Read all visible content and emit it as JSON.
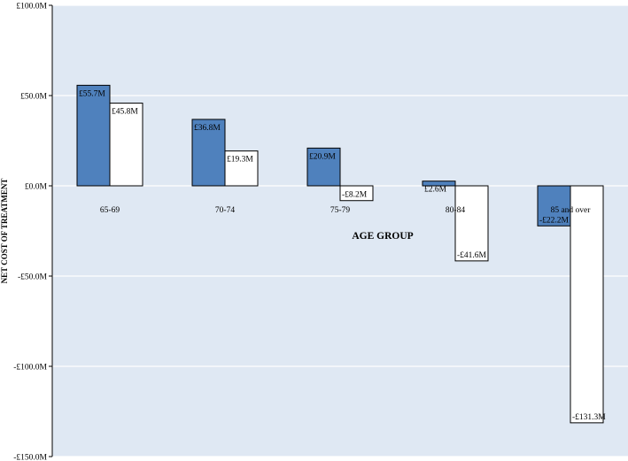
{
  "chart_data": {
    "type": "bar",
    "title": "",
    "xlabel": "AGE GROUP",
    "ylabel": "NET COST OF TREATMENT",
    "categories": [
      "65-69",
      "70-74",
      "75-79",
      "80-84",
      "85 and over"
    ],
    "series": [
      {
        "values": [
          55.7,
          36.8,
          20.9,
          2.6,
          -22.2
        ],
        "labels": [
          "£55.7M",
          "£36.8M",
          "£20.9M",
          "£2.6M",
          "-£22.2M"
        ]
      },
      {
        "values": [
          45.8,
          19.3,
          -8.2,
          -41.6,
          -131.3
        ],
        "labels": [
          "£45.8M",
          "£19.3M",
          "-£8.2M",
          "-£41.6M",
          "-£131.3M"
        ]
      }
    ],
    "ylim": [
      -150,
      100
    ],
    "yticks": [
      100,
      50,
      0,
      -50,
      -100,
      -150
    ],
    "ytick_labels": [
      "£100.0M",
      "£50.0M",
      "£0.0M",
      "-£50.0M",
      "-£100.0M",
      "-£150.0M"
    ],
    "grid": true,
    "legend": "none",
    "colors": {
      "plot_background": "#dfe8f3",
      "gridline": "#ffffff",
      "series_1_fill": "#4f81bd",
      "series_2_fill": "#ffffff",
      "bar_border": "#000000"
    }
  }
}
